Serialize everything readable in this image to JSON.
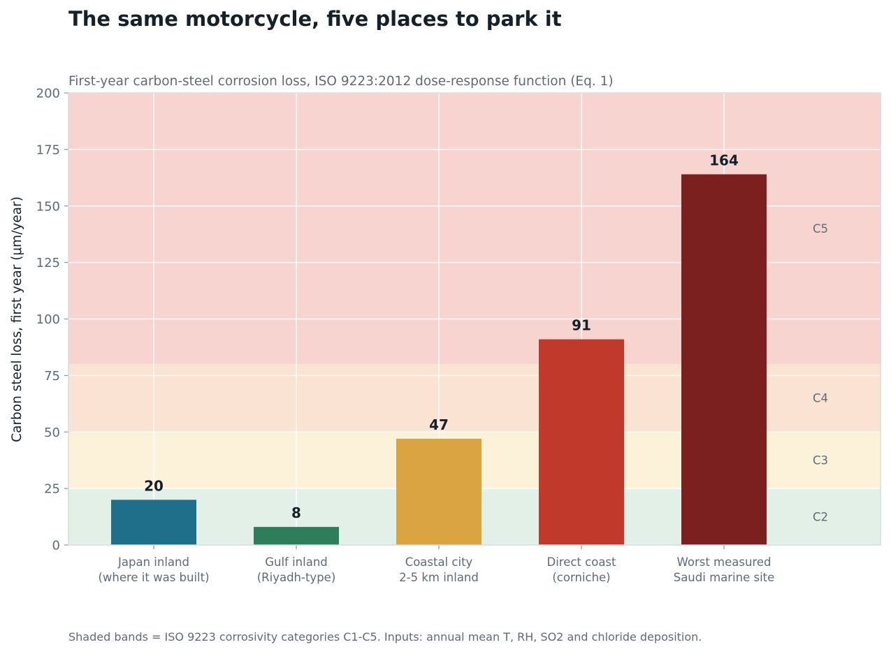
{
  "chart_data": {
    "type": "bar",
    "title": "The same motorcycle, five places to park it",
    "subtitle": "First-year carbon-steel corrosion loss, ISO 9223:2012 dose-response function (Eq. 1)",
    "ylabel": "Carbon steel loss, first year (μm/year)",
    "xlabel": "",
    "ylim": [
      0,
      200
    ],
    "yticks": [
      0,
      25,
      50,
      75,
      100,
      125,
      150,
      175,
      200
    ],
    "grid": true,
    "categories": [
      [
        "Japan inland",
        "(where it was built)"
      ],
      [
        "Gulf inland",
        "(Riyadh-type)"
      ],
      [
        "Coastal city",
        "2-5 km inland"
      ],
      [
        "Direct coast",
        "(corniche)"
      ],
      [
        "Worst measured",
        "Saudi marine site"
      ]
    ],
    "values": [
      20,
      8,
      47,
      91,
      164
    ],
    "value_labels": [
      "20",
      "8",
      "47",
      "91",
      "164"
    ],
    "bar_colors": [
      "#1f6e8a",
      "#2e7d5b",
      "#d9a441",
      "#c0392b",
      "#7b1f1f"
    ],
    "bands": [
      {
        "label": "C2",
        "from": 0,
        "to": 25,
        "color": "#e3f0e8"
      },
      {
        "label": "C3",
        "from": 25,
        "to": 50,
        "color": "#fcf1d9"
      },
      {
        "label": "C4",
        "from": 50,
        "to": 80,
        "color": "#fbe3d4"
      },
      {
        "label": "C5",
        "from": 80,
        "to": 200,
        "color": "#f7d4cf"
      }
    ],
    "footnote": "Shaded bands = ISO 9223 corrosivity categories C1-C5. Inputs: annual mean T, RH, SO2 and chloride deposition."
  }
}
